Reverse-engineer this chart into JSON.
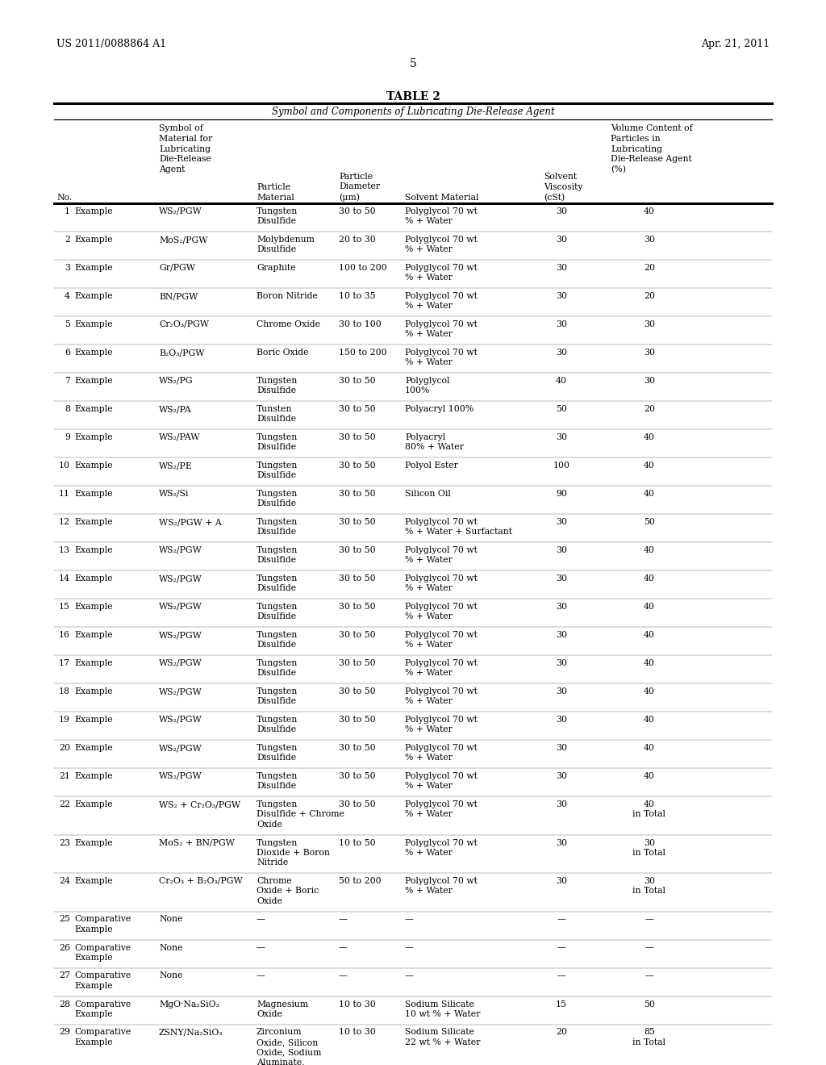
{
  "header_left": "US 2011/0088864 A1",
  "header_right": "Apr. 21, 2011",
  "page_number": "5",
  "title": "TABLE 2",
  "subtitle": "Symbol and Components of Lubricating Die-Release Agent",
  "rows": [
    {
      "no": "1",
      "type": "Example",
      "symbol": "WS₂/PGW",
      "particle": "Tungsten\nDisulfide",
      "diam": "30 to 50",
      "solvent": "Polyglycol 70 wt\n% + Water",
      "visc": "30",
      "vol": "40"
    },
    {
      "no": "2",
      "type": "Example",
      "symbol": "MoS₂/PGW",
      "particle": "Molybdenum\nDisulfide",
      "diam": "20 to 30",
      "solvent": "Polyglycol 70 wt\n% + Water",
      "visc": "30",
      "vol": "30"
    },
    {
      "no": "3",
      "type": "Example",
      "symbol": "Gr/PGW",
      "particle": "Graphite",
      "diam": "100 to 200",
      "solvent": "Polyglycol 70 wt\n% + Water",
      "visc": "30",
      "vol": "20"
    },
    {
      "no": "4",
      "type": "Example",
      "symbol": "BN/PGW",
      "particle": "Boron Nitride",
      "diam": "10 to 35",
      "solvent": "Polyglycol 70 wt\n% + Water",
      "visc": "30",
      "vol": "20"
    },
    {
      "no": "5",
      "type": "Example",
      "symbol": "Cr₂O₃/PGW",
      "particle": "Chrome Oxide",
      "diam": "30 to 100",
      "solvent": "Polyglycol 70 wt\n% + Water",
      "visc": "30",
      "vol": "30"
    },
    {
      "no": "6",
      "type": "Example",
      "symbol": "B₂O₃/PGW",
      "particle": "Boric Oxide",
      "diam": "150 to 200",
      "solvent": "Polyglycol 70 wt\n% + Water",
      "visc": "30",
      "vol": "30"
    },
    {
      "no": "7",
      "type": "Example",
      "symbol": "WS₂/PG",
      "particle": "Tungsten\nDisulfide",
      "diam": "30 to 50",
      "solvent": "Polyglycol\n100%",
      "visc": "40",
      "vol": "30"
    },
    {
      "no": "8",
      "type": "Example",
      "symbol": "WS₂/PA",
      "particle": "Tunsten\nDisulfide",
      "diam": "30 to 50",
      "solvent": "Polyacryl 100%",
      "visc": "50",
      "vol": "20"
    },
    {
      "no": "9",
      "type": "Example",
      "symbol": "WS₂/PAW",
      "particle": "Tungsten\nDisulfide",
      "diam": "30 to 50",
      "solvent": "Polyacryl\n80% + Water",
      "visc": "30",
      "vol": "40"
    },
    {
      "no": "10",
      "type": "Example",
      "symbol": "WS₂/PE",
      "particle": "Tungsten\nDisulfide",
      "diam": "30 to 50",
      "solvent": "Polyol Ester",
      "visc": "100",
      "vol": "40"
    },
    {
      "no": "11",
      "type": "Example",
      "symbol": "WS₂/Si",
      "particle": "Tungsten\nDisulfide",
      "diam": "30 to 50",
      "solvent": "Silicon Oil",
      "visc": "90",
      "vol": "40"
    },
    {
      "no": "12",
      "type": "Example",
      "symbol": "WS₂/PGW + A",
      "particle": "Tungsten\nDisulfide",
      "diam": "30 to 50",
      "solvent": "Polyglycol 70 wt\n% + Water + Surfactant",
      "visc": "30",
      "vol": "50"
    },
    {
      "no": "13",
      "type": "Example",
      "symbol": "WS₂/PGW",
      "particle": "Tungsten\nDisulfide",
      "diam": "30 to 50",
      "solvent": "Polyglycol 70 wt\n% + Water",
      "visc": "30",
      "vol": "40"
    },
    {
      "no": "14",
      "type": "Example",
      "symbol": "WS₂/PGW",
      "particle": "Tungsten\nDisulfide",
      "diam": "30 to 50",
      "solvent": "Polyglycol 70 wt\n% + Water",
      "visc": "30",
      "vol": "40"
    },
    {
      "no": "15",
      "type": "Example",
      "symbol": "WS₂/PGW",
      "particle": "Tungsten\nDisulfide",
      "diam": "30 to 50",
      "solvent": "Polyglycol 70 wt\n% + Water",
      "visc": "30",
      "vol": "40"
    },
    {
      "no": "16",
      "type": "Example",
      "symbol": "WS₂/PGW",
      "particle": "Tungsten\nDisulfide",
      "diam": "30 to 50",
      "solvent": "Polyglycol 70 wt\n% + Water",
      "visc": "30",
      "vol": "40"
    },
    {
      "no": "17",
      "type": "Example",
      "symbol": "WS₂/PGW",
      "particle": "Tungsten\nDisulfide",
      "diam": "30 to 50",
      "solvent": "Polyglycol 70 wt\n% + Water",
      "visc": "30",
      "vol": "40"
    },
    {
      "no": "18",
      "type": "Example",
      "symbol": "WS₂/PGW",
      "particle": "Tungsten\nDisulfide",
      "diam": "30 to 50",
      "solvent": "Polyglycol 70 wt\n% + Water",
      "visc": "30",
      "vol": "40"
    },
    {
      "no": "19",
      "type": "Example",
      "symbol": "WS₂/PGW",
      "particle": "Tungsten\nDisulfide",
      "diam": "30 to 50",
      "solvent": "Polyglycol 70 wt\n% + Water",
      "visc": "30",
      "vol": "40"
    },
    {
      "no": "20",
      "type": "Example",
      "symbol": "WS₂/PGW",
      "particle": "Tungsten\nDisulfide",
      "diam": "30 to 50",
      "solvent": "Polyglycol 70 wt\n% + Water",
      "visc": "30",
      "vol": "40"
    },
    {
      "no": "21",
      "type": "Example",
      "symbol": "WS₂/PGW",
      "particle": "Tungsten\nDisulfide",
      "diam": "30 to 50",
      "solvent": "Polyglycol 70 wt\n% + Water",
      "visc": "30",
      "vol": "40"
    },
    {
      "no": "22",
      "type": "Example",
      "symbol": "WS₂ + Cr₂O₃/PGW",
      "particle": "Tungsten\nDisulfide + Chrome\nOxide",
      "diam": "30 to 50",
      "solvent": "Polyglycol 70 wt\n% + Water",
      "visc": "30",
      "vol": "40\nin Total"
    },
    {
      "no": "23",
      "type": "Example",
      "symbol": "MoS₂ + BN/PGW",
      "particle": "Tungsten\nDioxide + Boron\nNitride",
      "diam": "10 to 50",
      "solvent": "Polyglycol 70 wt\n% + Water",
      "visc": "30",
      "vol": "30\nin Total"
    },
    {
      "no": "24",
      "type": "Example",
      "symbol": "Cr₂O₃ + B₂O₃/PGW",
      "particle": "Chrome\nOxide + Boric\nOxide",
      "diam": "50 to 200",
      "solvent": "Polyglycol 70 wt\n% + Water",
      "visc": "30",
      "vol": "30\nin Total"
    },
    {
      "no": "25",
      "type": "Comparative\nExample",
      "symbol": "None",
      "particle": "—",
      "diam": "—",
      "solvent": "—",
      "visc": "—",
      "vol": "—"
    },
    {
      "no": "26",
      "type": "Comparative\nExample",
      "symbol": "None",
      "particle": "—",
      "diam": "—",
      "solvent": "—",
      "visc": "—",
      "vol": "—"
    },
    {
      "no": "27",
      "type": "Comparative\nExample",
      "symbol": "None",
      "particle": "—",
      "diam": "—",
      "solvent": "—",
      "visc": "—",
      "vol": "—"
    },
    {
      "no": "28",
      "type": "Comparative\nExample",
      "symbol": "MgO·Na₂SiO₃",
      "particle": "Magnesium\nOxide",
      "diam": "10 to 30",
      "solvent": "Sodium Silicate\n10 wt % + Water",
      "visc": "15",
      "vol": "50"
    },
    {
      "no": "29",
      "type": "Comparative\nExample",
      "symbol": "ZSNY/Na₂SiO₃",
      "particle": "Zirconium\nOxide, Silicon\nOxide, Sodium\nAluminate,\nYttria",
      "diam": "10 to 30",
      "solvent": "Sodium Silicate\n22 wt % + Water",
      "visc": "20",
      "vol": "85\nin Total"
    }
  ]
}
